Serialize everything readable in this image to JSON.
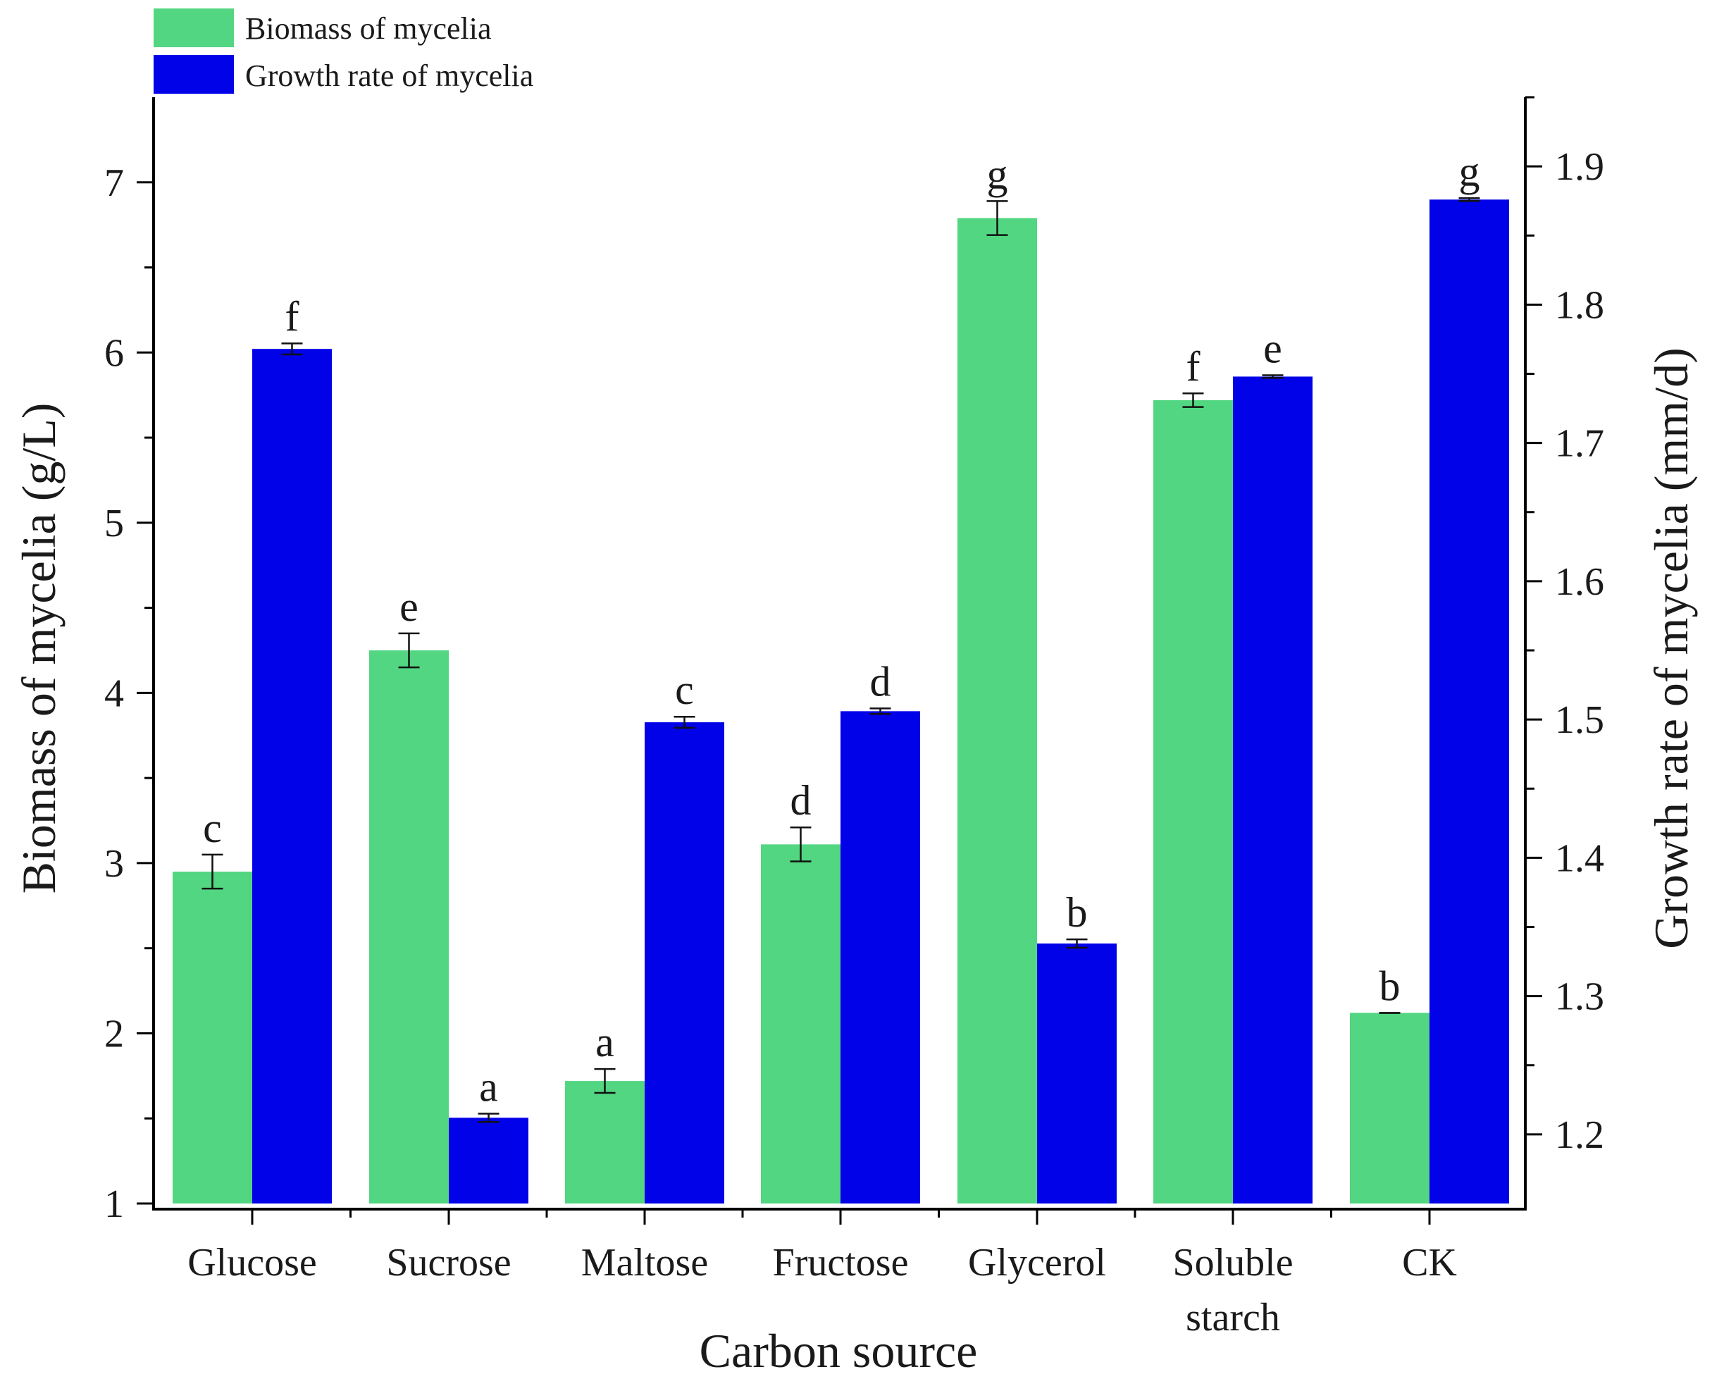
{
  "chart_data": {
    "type": "bar",
    "xlabel": "Carbon source",
    "ylabel_left": "Biomass of mycelia (g/L)",
    "ylabel_right": "Growth rate of mycelia (mm/d)",
    "categories": [
      [
        "Glucose"
      ],
      [
        "Sucrose"
      ],
      [
        "Maltose"
      ],
      [
        "Fructose"
      ],
      [
        "Glycerol"
      ],
      [
        "Soluble",
        "starch"
      ],
      [
        "CK"
      ]
    ],
    "y_left": {
      "min": 1,
      "max": 7.5,
      "ticks": [
        1,
        2,
        3,
        4,
        5,
        6,
        7
      ],
      "tick_labels": [
        "1",
        "2",
        "3",
        "4",
        "5",
        "6",
        "7"
      ]
    },
    "y_right": {
      "min": 1.15,
      "max": 1.95,
      "ticks": [
        1.2,
        1.3,
        1.4,
        1.5,
        1.6,
        1.7,
        1.8,
        1.9
      ],
      "tick_labels": [
        "1.2",
        "1.3",
        "1.4",
        "1.5",
        "1.6",
        "1.7",
        "1.8",
        "1.9"
      ]
    },
    "series": [
      {
        "name": "Biomass of mycelia",
        "axis": "left",
        "color": "#52d681",
        "values": [
          2.95,
          4.25,
          1.72,
          3.11,
          6.79,
          5.72,
          2.12
        ],
        "errors": [
          0.1,
          0.1,
          0.07,
          0.1,
          0.1,
          0.04,
          0.0
        ],
        "significance": [
          "c",
          "e",
          "a",
          "d",
          "g",
          "f",
          "b"
        ]
      },
      {
        "name": "Growth rate of mycelia",
        "axis": "right",
        "color": "#0202e8",
        "values": [
          1.768,
          1.212,
          1.498,
          1.506,
          1.338,
          1.748,
          1.876
        ],
        "errors": [
          0.004,
          0.003,
          0.004,
          0.002,
          0.003,
          0.001,
          0.001
        ],
        "significance": [
          "f",
          "a",
          "c",
          "d",
          "b",
          "e",
          "g"
        ]
      }
    ]
  }
}
